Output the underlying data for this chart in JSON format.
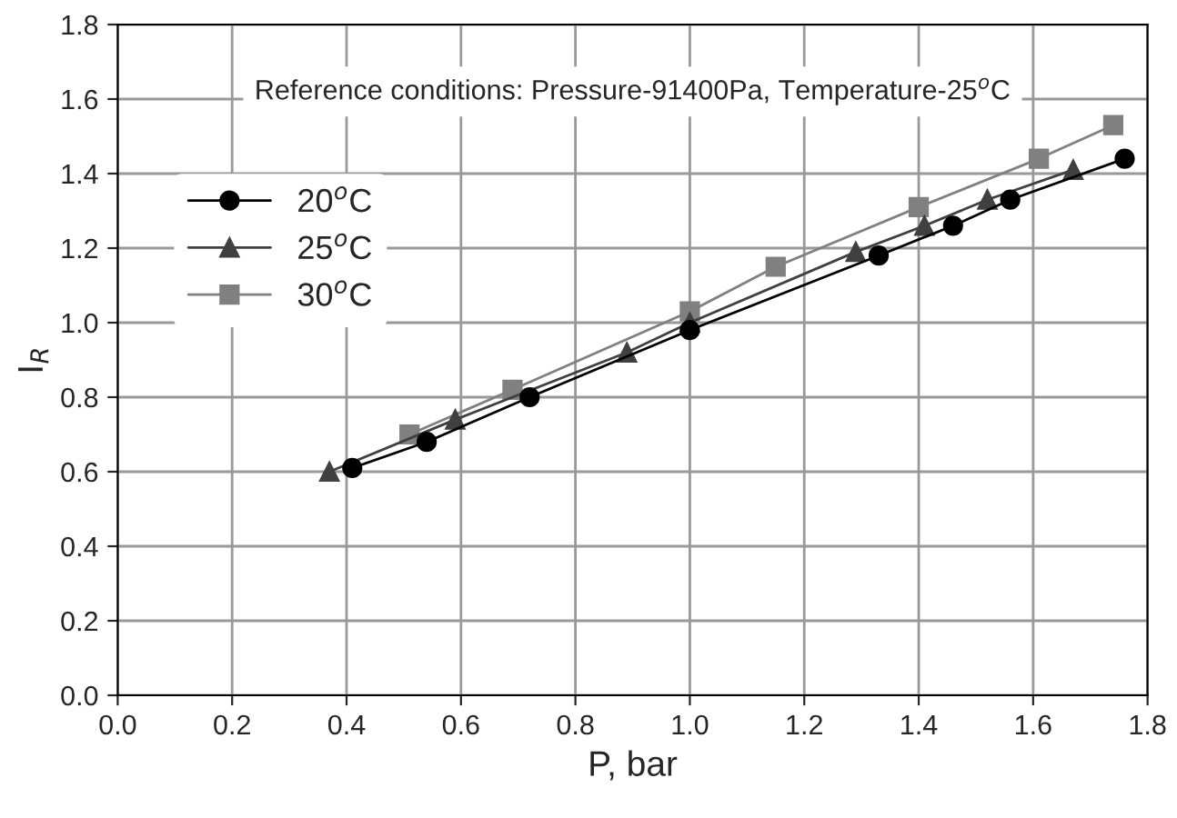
{
  "chart_data": {
    "type": "line",
    "xlabel": "P, bar",
    "ylabel": "I$_{R}$",
    "annotations": [
      "Reference conditions: Pressure-91400Pa, Temperature-25$^{o}$C"
    ],
    "xlim": [
      0.0,
      1.8
    ],
    "xticks": [
      {
        "value": 0.0,
        "label": "0.0"
      },
      {
        "value": 0.2,
        "label": "0.2"
      },
      {
        "value": 0.4,
        "label": "0.4"
      },
      {
        "value": 0.6,
        "label": "0.6"
      },
      {
        "value": 0.8,
        "label": "0.8"
      },
      {
        "value": 1.0,
        "label": "1.0"
      },
      {
        "value": 1.2,
        "label": "1.2"
      },
      {
        "value": 1.4,
        "label": "1.4"
      },
      {
        "value": 1.6,
        "label": "1.6"
      },
      {
        "value": 1.8,
        "label": "1.8"
      }
    ],
    "ylim": [
      0.0,
      1.8
    ],
    "yticks": [
      {
        "value": 0.0,
        "label": "0.0"
      },
      {
        "value": 0.2,
        "label": "0.2"
      },
      {
        "value": 0.4,
        "label": "0.4"
      },
      {
        "value": 0.6,
        "label": "0.6"
      },
      {
        "value": 0.8,
        "label": "0.8"
      },
      {
        "value": 1.0,
        "label": "1.0"
      },
      {
        "value": 1.2,
        "label": "1.2"
      },
      {
        "value": 1.4,
        "label": "1.4"
      },
      {
        "value": 1.6,
        "label": "1.6"
      },
      {
        "value": 1.8,
        "label": "1.8"
      }
    ],
    "grid": true,
    "legend": "upper left",
    "series": [
      {
        "name": "20$^{o}$C",
        "color": "#000000",
        "marker": "circle",
        "x": [
          0.41,
          0.54,
          0.72,
          1.0,
          1.33,
          1.46,
          1.56,
          1.76
        ],
        "values": [
          0.61,
          0.68,
          0.8,
          0.98,
          1.18,
          1.26,
          1.33,
          1.44
        ]
      },
      {
        "name": "25$^{o}$C",
        "color": "#404040",
        "marker": "triangle",
        "x": [
          0.37,
          0.59,
          0.89,
          1.0,
          1.29,
          1.41,
          1.52,
          1.67
        ],
        "values": [
          0.6,
          0.74,
          0.92,
          1.0,
          1.19,
          1.26,
          1.33,
          1.41
        ]
      },
      {
        "name": "30$^{o}$C",
        "color": "#808080",
        "marker": "square",
        "x": [
          0.51,
          0.69,
          1.0,
          1.15,
          1.4,
          1.61,
          1.74
        ],
        "values": [
          0.7,
          0.82,
          1.03,
          1.15,
          1.31,
          1.44,
          1.53
        ]
      }
    ]
  }
}
